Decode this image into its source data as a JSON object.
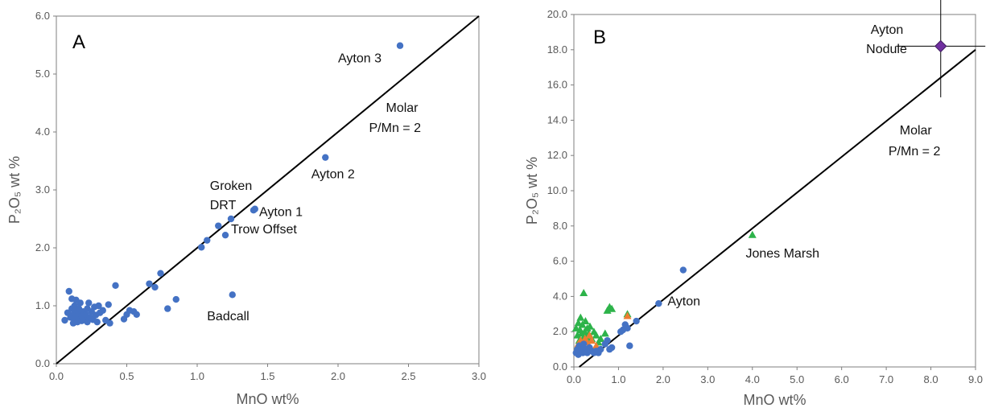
{
  "chart_data": [
    {
      "panel": "A",
      "type": "scatter",
      "xlabel": "MnO wt%",
      "ylabel": "P₂O₅ wt %",
      "xlim": [
        0,
        3
      ],
      "ylim": [
        0,
        6
      ],
      "xticks": [
        "0.0",
        "0.5",
        "1.0",
        "1.5",
        "2.0",
        "2.5",
        "3.0"
      ],
      "yticks": [
        "0.0",
        "1.0",
        "2.0",
        "3.0",
        "4.0",
        "5.0",
        "6.0"
      ],
      "series": [
        {
          "marker": "circle",
          "color": "#4472C4",
          "points": [
            [
              0.06,
              0.75
            ],
            [
              0.08,
              0.88
            ],
            [
              0.09,
              1.25
            ],
            [
              0.1,
              0.8
            ],
            [
              0.11,
              0.95
            ],
            [
              0.11,
              1.12
            ],
            [
              0.12,
              0.7
            ],
            [
              0.12,
              0.85
            ],
            [
              0.13,
              1.0
            ],
            [
              0.13,
              0.78
            ],
            [
              0.14,
              0.92
            ],
            [
              0.14,
              1.1
            ],
            [
              0.15,
              0.72
            ],
            [
              0.15,
              0.82
            ],
            [
              0.16,
              0.95
            ],
            [
              0.16,
              0.76
            ],
            [
              0.17,
              1.05
            ],
            [
              0.17,
              0.88
            ],
            [
              0.18,
              0.74
            ],
            [
              0.18,
              0.83
            ],
            [
              0.19,
              0.9
            ],
            [
              0.2,
              0.78
            ],
            [
              0.21,
              0.85
            ],
            [
              0.22,
              0.72
            ],
            [
              0.22,
              0.95
            ],
            [
              0.23,
              1.05
            ],
            [
              0.24,
              0.8
            ],
            [
              0.25,
              0.9
            ],
            [
              0.26,
              0.76
            ],
            [
              0.27,
              0.98
            ],
            [
              0.28,
              0.84
            ],
            [
              0.29,
              0.72
            ],
            [
              0.3,
              1.0
            ],
            [
              0.31,
              0.88
            ],
            [
              0.33,
              0.92
            ],
            [
              0.35,
              0.75
            ],
            [
              0.37,
              1.02
            ],
            [
              0.38,
              0.7
            ],
            [
              0.42,
              1.35
            ],
            [
              0.48,
              0.77
            ],
            [
              0.5,
              0.85
            ],
            [
              0.52,
              0.92
            ],
            [
              0.55,
              0.9
            ],
            [
              0.57,
              0.85
            ],
            [
              0.66,
              1.38
            ],
            [
              0.7,
              1.32
            ],
            [
              0.74,
              1.56
            ],
            [
              0.79,
              0.95
            ],
            [
              0.85,
              1.11
            ],
            [
              1.03,
              2.01
            ],
            [
              1.07,
              2.13
            ],
            [
              1.15,
              2.38
            ],
            [
              1.2,
              2.22
            ],
            [
              1.24,
              2.5
            ],
            [
              1.25,
              1.19
            ],
            [
              1.4,
              2.65
            ],
            [
              1.41,
              2.67
            ],
            [
              1.91,
              3.56
            ],
            [
              2.44,
              5.49
            ]
          ]
        }
      ],
      "reference_line": {
        "label": "Molar P/Mn = 2",
        "from": [
          0,
          0
        ],
        "to": [
          3,
          6
        ]
      },
      "annotations": [
        {
          "text": "Ayton 3",
          "x": 2.0,
          "y": 5.2
        },
        {
          "text": "Molar",
          "x": 2.34,
          "y": 4.35
        },
        {
          "text": "P/Mn = 2",
          "x": 2.22,
          "y": 4.0
        },
        {
          "text": "Ayton 2",
          "x": 1.81,
          "y": 3.2
        },
        {
          "text": "Groken",
          "x": 1.09,
          "y": 3.0
        },
        {
          "text": "DRT",
          "x": 1.09,
          "y": 2.67
        },
        {
          "text": "Ayton 1",
          "x": 1.44,
          "y": 2.55
        },
        {
          "text": "Trow Offset",
          "x": 1.24,
          "y": 2.25
        },
        {
          "text": "Badcall",
          "x": 1.07,
          "y": 0.75
        }
      ]
    },
    {
      "panel": "B",
      "type": "scatter",
      "xlabel": "MnO wt%",
      "ylabel": "P₂O₅ wt %",
      "xlim": [
        0,
        9
      ],
      "ylim": [
        0,
        20
      ],
      "xticks": [
        "0.0",
        "1.0",
        "2.0",
        "3.0",
        "4.0",
        "5.0",
        "6.0",
        "7.0",
        "8.0",
        "9.0"
      ],
      "yticks": [
        "0.0",
        "2.0",
        "4.0",
        "6.0",
        "8.0",
        "10.0",
        "12.0",
        "14.0",
        "16.0",
        "18.0",
        "20.0"
      ],
      "series": [
        {
          "marker": "triangle",
          "color": "#2DB34A",
          "points": [
            [
              0.05,
              2.2
            ],
            [
              0.08,
              1.8
            ],
            [
              0.1,
              2.5
            ],
            [
              0.12,
              1.5
            ],
            [
              0.14,
              2.1
            ],
            [
              0.15,
              2.8
            ],
            [
              0.17,
              1.9
            ],
            [
              0.19,
              2.4
            ],
            [
              0.2,
              1.6
            ],
            [
              0.22,
              4.2
            ],
            [
              0.24,
              2.0
            ],
            [
              0.26,
              2.6
            ],
            [
              0.28,
              1.7
            ],
            [
              0.3,
              2.2
            ],
            [
              0.33,
              1.9
            ],
            [
              0.36,
              2.3
            ],
            [
              0.4,
              1.6
            ],
            [
              0.45,
              2.0
            ],
            [
              0.5,
              1.8
            ],
            [
              0.55,
              1.4
            ],
            [
              0.6,
              1.6
            ],
            [
              0.7,
              1.9
            ],
            [
              0.75,
              3.2
            ],
            [
              0.8,
              3.4
            ],
            [
              0.85,
              3.3
            ],
            [
              1.2,
              3.0
            ],
            [
              4.0,
              7.5
            ]
          ]
        },
        {
          "marker": "triangle",
          "color": "#ED7D31",
          "points": [
            [
              0.1,
              1.3
            ],
            [
              0.15,
              1.5
            ],
            [
              0.2,
              1.2
            ],
            [
              0.25,
              1.6
            ],
            [
              0.3,
              1.4
            ],
            [
              0.35,
              1.8
            ],
            [
              0.4,
              1.5
            ],
            [
              0.5,
              1.2
            ],
            [
              1.2,
              2.9
            ]
          ]
        },
        {
          "marker": "circle",
          "color": "#4472C4",
          "points": [
            [
              0.05,
              0.8
            ],
            [
              0.08,
              1.0
            ],
            [
              0.1,
              0.7
            ],
            [
              0.12,
              1.2
            ],
            [
              0.15,
              0.9
            ],
            [
              0.18,
              1.1
            ],
            [
              0.2,
              0.8
            ],
            [
              0.22,
              1.3
            ],
            [
              0.25,
              0.9
            ],
            [
              0.28,
              1.0
            ],
            [
              0.3,
              0.8
            ],
            [
              0.35,
              1.1
            ],
            [
              0.4,
              0.9
            ],
            [
              0.45,
              0.8
            ],
            [
              0.5,
              0.9
            ],
            [
              0.55,
              0.8
            ],
            [
              0.6,
              1.0
            ],
            [
              0.7,
              1.3
            ],
            [
              0.75,
              1.5
            ],
            [
              0.8,
              1.0
            ],
            [
              0.85,
              1.1
            ],
            [
              1.05,
              2.0
            ],
            [
              1.1,
              2.1
            ],
            [
              1.15,
              2.4
            ],
            [
              1.2,
              2.2
            ],
            [
              1.25,
              1.2
            ],
            [
              1.4,
              2.6
            ],
            [
              1.9,
              3.6
            ],
            [
              2.45,
              5.5
            ]
          ]
        },
        {
          "marker": "diamond",
          "color": "#7030A0",
          "error": {
            "x": 1.0,
            "y": 2.9
          },
          "points": [
            [
              8.22,
              18.2
            ]
          ]
        }
      ],
      "reference_line": {
        "label": "Molar P/Mn = 2",
        "from": [
          0.12,
          0
        ],
        "to": [
          9,
          18
        ]
      },
      "annotations": [
        {
          "text": "Ayton",
          "x": 6.65,
          "y": 18.9
        },
        {
          "text": "Nodule",
          "x": 6.55,
          "y": 17.8
        },
        {
          "text": "Molar",
          "x": 7.3,
          "y": 13.2
        },
        {
          "text": "P/Mn = 2",
          "x": 7.05,
          "y": 12.0
        },
        {
          "text": "Jones Marsh",
          "x": 3.85,
          "y": 6.2
        },
        {
          "text": "Ayton",
          "x": 2.1,
          "y": 3.5
        }
      ]
    }
  ]
}
